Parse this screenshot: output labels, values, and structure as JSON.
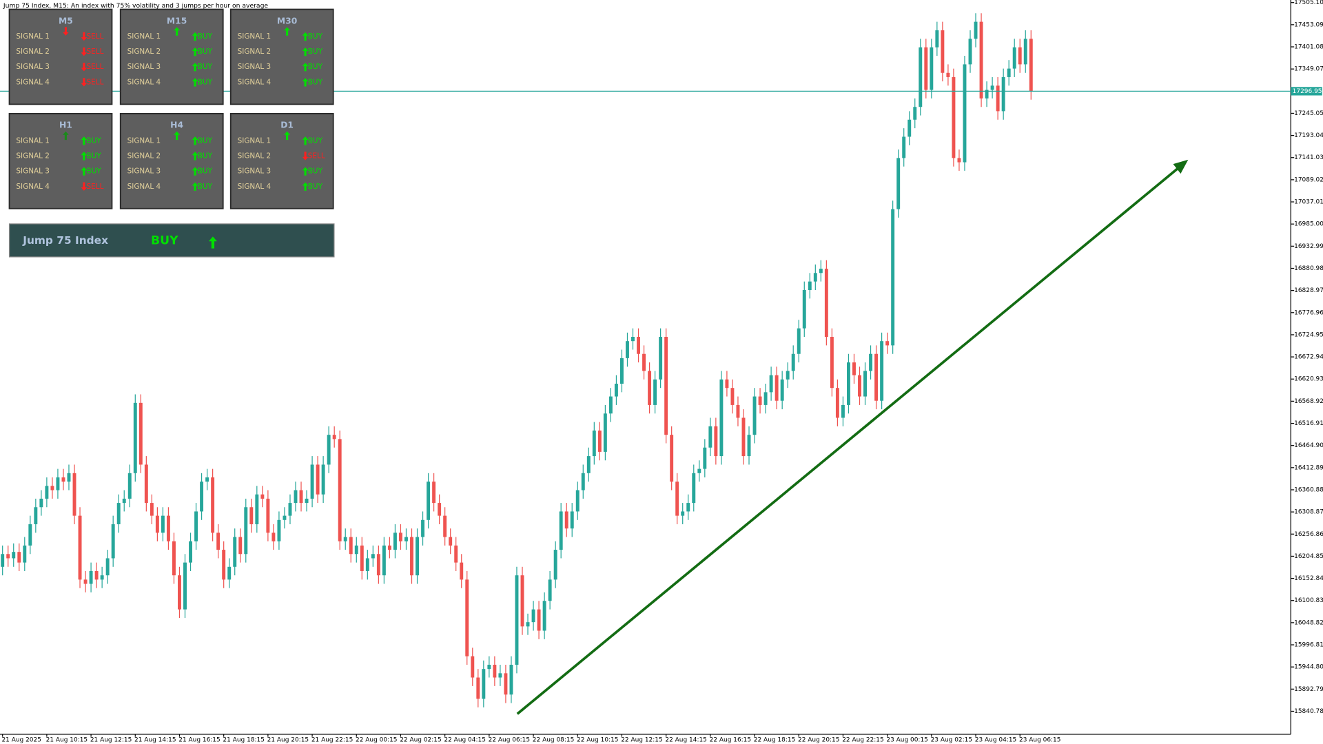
{
  "header": {
    "title": "Jump 75 Index, M15:  An index with 75% volatility and 3 jumps per hour on average"
  },
  "panels": [
    {
      "timeframe": "M5",
      "arrow": "down",
      "arrow_color": "#ff2020",
      "signals": [
        {
          "label": "SIGNAL 1",
          "value": "SELL"
        },
        {
          "label": "SIGNAL 2",
          "value": "SELL"
        },
        {
          "label": "SIGNAL 3",
          "value": "SELL"
        },
        {
          "label": "SIGNAL 4",
          "value": "SELL"
        }
      ]
    },
    {
      "timeframe": "M15",
      "arrow": "up",
      "arrow_color": "#00e000",
      "signals": [
        {
          "label": "SIGNAL 1",
          "value": "BUY"
        },
        {
          "label": "SIGNAL 2",
          "value": "BUY"
        },
        {
          "label": "SIGNAL 3",
          "value": "BUY"
        },
        {
          "label": "SIGNAL 4",
          "value": "BUY"
        }
      ]
    },
    {
      "timeframe": "M30",
      "arrow": "up",
      "arrow_color": "#00e000",
      "signals": [
        {
          "label": "SIGNAL 1",
          "value": "BUY"
        },
        {
          "label": "SIGNAL 2",
          "value": "BUY"
        },
        {
          "label": "SIGNAL 3",
          "value": "BUY"
        },
        {
          "label": "SIGNAL 4",
          "value": "BUY"
        }
      ]
    },
    {
      "timeframe": "H1",
      "arrow": "up",
      "arrow_color": "#1a8a1a",
      "signals": [
        {
          "label": "SIGNAL 1",
          "value": "BUY"
        },
        {
          "label": "SIGNAL 2",
          "value": "BUY"
        },
        {
          "label": "SIGNAL 3",
          "value": "BUY"
        },
        {
          "label": "SIGNAL 4",
          "value": "SELL"
        }
      ]
    },
    {
      "timeframe": "H4",
      "arrow": "up",
      "arrow_color": "#00e000",
      "signals": [
        {
          "label": "SIGNAL 1",
          "value": "BUY"
        },
        {
          "label": "SIGNAL 2",
          "value": "BUY"
        },
        {
          "label": "SIGNAL 3",
          "value": "BUY"
        },
        {
          "label": "SIGNAL 4",
          "value": "BUY"
        }
      ]
    },
    {
      "timeframe": "D1",
      "arrow": "up",
      "arrow_color": "#00e000",
      "signals": [
        {
          "label": "SIGNAL 1",
          "value": "BUY"
        },
        {
          "label": "SIGNAL 2",
          "value": "SELL"
        },
        {
          "label": "SIGNAL 3",
          "value": "BUY"
        },
        {
          "label": "SIGNAL 4",
          "value": "BUY"
        }
      ]
    }
  ],
  "summary": {
    "symbol": "Jump 75 Index",
    "signal": "BUY",
    "arrow": "up",
    "arrow_color": "#00e000"
  },
  "chart_data": {
    "type": "candlestick",
    "up_color": "#26a69a",
    "down_color": "#ef5350",
    "current_price": 17296.95,
    "current_price_color": "#26a69a",
    "categories": [
      "21 Aug 2025",
      null,
      null,
      null,
      null,
      null,
      null,
      null,
      "21 Aug 10:15",
      null,
      null,
      null,
      null,
      null,
      null,
      null,
      "21 Aug 12:15",
      null,
      null,
      null,
      null,
      null,
      null,
      null,
      "21 Aug 14:15",
      null,
      null,
      null,
      null,
      null,
      null,
      null,
      "21 Aug 16:15",
      null,
      null,
      null,
      null,
      null,
      null,
      null,
      "21 Aug 18:15",
      null,
      null,
      null,
      null,
      null,
      null,
      null,
      "21 Aug 20:15",
      null,
      null,
      null,
      null,
      null,
      null,
      null,
      "21 Aug 22:15",
      null,
      null,
      null,
      null,
      null,
      null,
      null,
      "22 Aug 00:15",
      null,
      null,
      null,
      null,
      null,
      null,
      null,
      "22 Aug 02:15",
      null,
      null,
      null,
      null,
      null,
      null,
      null,
      "22 Aug 04:15",
      null,
      null,
      null,
      null,
      null,
      null,
      null,
      "22 Aug 06:15",
      null,
      null,
      null,
      null,
      null,
      null,
      null,
      "22 Aug 08:15",
      null,
      null,
      null,
      null,
      null,
      null,
      null,
      "22 Aug 10:15",
      null,
      null,
      null,
      null,
      null,
      null,
      null,
      "22 Aug 12:15",
      null,
      null,
      null,
      null,
      null,
      null,
      null,
      "22 Aug 14:15",
      null,
      null,
      null,
      null,
      null,
      null,
      null,
      "22 Aug 16:15",
      null,
      null,
      null,
      null,
      null,
      null,
      null,
      "22 Aug 18:15",
      null,
      null,
      null,
      null,
      null,
      null,
      null,
      "22 Aug 20:15",
      null,
      null,
      null,
      null,
      null,
      null,
      null,
      "22 Aug 22:15",
      null,
      null,
      null,
      null,
      null,
      null,
      null,
      "23 Aug 00:15",
      null,
      null,
      null,
      null,
      null,
      null,
      null,
      "23 Aug 02:15",
      null,
      null,
      null,
      null,
      null,
      null,
      null,
      "23 Aug 04:15",
      null,
      null,
      null,
      null,
      null,
      null,
      null,
      "23 Aug 06:15",
      null,
      null
    ],
    "open": [
      16180,
      16210,
      16200,
      16215,
      16190,
      16230,
      16280,
      16320,
      16340,
      16370,
      16360,
      16390,
      16380,
      16400,
      16300,
      16150,
      16140,
      16170,
      16150,
      16160,
      16200,
      16280,
      16330,
      16340,
      16400,
      16565,
      16420,
      16330,
      16300,
      16260,
      16300,
      16240,
      16160,
      16080,
      16190,
      16240,
      16310,
      16380,
      16390,
      16260,
      16220,
      16150,
      16180,
      16250,
      16210,
      16320,
      16280,
      16350,
      16340,
      16260,
      16240,
      16290,
      16300,
      16330,
      16360,
      16330,
      16340,
      16420,
      16350,
      16420,
      16490,
      16480,
      16240,
      16250,
      16210,
      16230,
      16170,
      16200,
      16210,
      16160,
      16230,
      16220,
      16260,
      16240,
      16250,
      16160,
      16250,
      16290,
      16380,
      16330,
      16300,
      16250,
      16230,
      16190,
      16150,
      15970,
      15920,
      15870,
      15940,
      15950,
      15920,
      15930,
      15880,
      15950,
      16160,
      16040,
      16050,
      16080,
      16030,
      16100,
      16150,
      16220,
      16310,
      16270,
      16310,
      16360,
      16400,
      16440,
      16500,
      16450,
      16540,
      16580,
      16610,
      16670,
      16710,
      16720,
      16680,
      16640,
      16560,
      16620,
      16720,
      16490,
      16380,
      16300,
      16310,
      16330,
      16400,
      16410,
      16460,
      16510,
      16440,
      16620,
      16600,
      16560,
      16530,
      16440,
      16490,
      16580,
      16560,
      16590,
      16630,
      16570,
      16620,
      16640,
      16680,
      16740,
      16830,
      16850,
      16870,
      16880,
      16720,
      16600,
      16530,
      16560,
      16660,
      16630,
      16580,
      16640,
      16680,
      16570,
      16710,
      16700,
      17020,
      17140,
      17190,
      17230,
      17260,
      17400,
      17300,
      17400,
      17440,
      17340,
      17330,
      17140,
      17130,
      17360,
      17420,
      17460,
      17280,
      17300,
      17310,
      17250,
      17330,
      17350,
      17400,
      17360,
      17420
    ],
    "high": [
      16230,
      16230,
      16235,
      16235,
      16250,
      16300,
      16340,
      16360,
      16390,
      16390,
      16410,
      16410,
      16420,
      16420,
      16320,
      16170,
      16190,
      16190,
      16180,
      16220,
      16300,
      16350,
      16360,
      16420,
      16585,
      16585,
      16440,
      16350,
      16320,
      16320,
      16320,
      16260,
      16180,
      16210,
      16260,
      16330,
      16400,
      16410,
      16410,
      16280,
      16240,
      16200,
      16270,
      16270,
      16340,
      16340,
      16370,
      16370,
      16360,
      16280,
      16310,
      16320,
      16350,
      16380,
      16380,
      16360,
      16440,
      16440,
      16440,
      16510,
      16510,
      16500,
      16270,
      16270,
      16250,
      16250,
      16220,
      16230,
      16230,
      16250,
      16250,
      16280,
      16280,
      16270,
      16270,
      16270,
      16310,
      16400,
      16400,
      16350,
      16320,
      16270,
      16250,
      16210,
      16170,
      15990,
      15940,
      15960,
      15970,
      15970,
      15950,
      15950,
      15970,
      16180,
      16180,
      16070,
      16100,
      16100,
      16120,
      16170,
      16240,
      16330,
      16330,
      16330,
      16380,
      16420,
      16460,
      16520,
      16520,
      16560,
      16600,
      16630,
      16690,
      16730,
      16740,
      16740,
      16700,
      16660,
      16640,
      16740,
      16740,
      16510,
      16400,
      16330,
      16350,
      16420,
      16430,
      16480,
      16530,
      16530,
      16640,
      16640,
      16620,
      16580,
      16550,
      16510,
      16600,
      16600,
      16610,
      16650,
      16650,
      16640,
      16660,
      16700,
      16760,
      16850,
      16870,
      16890,
      16900,
      16900,
      16740,
      16620,
      16580,
      16680,
      16680,
      16650,
      16660,
      16700,
      16700,
      16730,
      16730,
      17040,
      17160,
      17210,
      17250,
      17280,
      17420,
      17420,
      17420,
      17460,
      17460,
      17360,
      17350,
      17160,
      17380,
      17440,
      17480,
      17480,
      17320,
      17330,
      17330,
      17350,
      17370,
      17420,
      17420,
      17440,
      17440
    ],
    "low": [
      16160,
      16180,
      16180,
      16170,
      16170,
      16210,
      16260,
      16300,
      16320,
      16340,
      16340,
      16360,
      16360,
      16280,
      16130,
      16120,
      16120,
      16130,
      16130,
      16140,
      16180,
      16260,
      16310,
      16320,
      16380,
      16400,
      16310,
      16280,
      16240,
      16240,
      16220,
      16140,
      16060,
      16060,
      16170,
      16220,
      16290,
      16360,
      16240,
      16200,
      16130,
      16130,
      16160,
      16190,
      16190,
      16260,
      16260,
      16320,
      16240,
      16220,
      16220,
      16270,
      16280,
      16310,
      16310,
      16310,
      16320,
      16330,
      16330,
      16400,
      16460,
      16220,
      16220,
      16190,
      16190,
      16150,
      16150,
      16180,
      16140,
      16140,
      16200,
      16200,
      16220,
      16220,
      16140,
      16140,
      16230,
      16270,
      16310,
      16280,
      16230,
      16210,
      16170,
      16130,
      15950,
      15900,
      15850,
      15850,
      15920,
      15900,
      15900,
      15860,
      15860,
      15930,
      16020,
      16020,
      16030,
      16010,
      16010,
      16080,
      16130,
      16200,
      16250,
      16250,
      16290,
      16340,
      16380,
      16420,
      16430,
      16430,
      16520,
      16560,
      16590,
      16650,
      16690,
      16660,
      16620,
      16540,
      16540,
      16600,
      16470,
      16360,
      16280,
      16280,
      16290,
      16310,
      16380,
      16390,
      16440,
      16420,
      16420,
      16580,
      16540,
      16510,
      16420,
      16420,
      16470,
      16540,
      16540,
      16570,
      16550,
      16550,
      16600,
      16620,
      16660,
      16720,
      16810,
      16830,
      16850,
      16700,
      16580,
      16510,
      16510,
      16540,
      16610,
      16560,
      16560,
      16620,
      16550,
      16550,
      16680,
      16680,
      17000,
      17120,
      17170,
      17210,
      17240,
      17280,
      17280,
      17380,
      17320,
      17310,
      17120,
      17110,
      17110,
      17340,
      17400,
      17260,
      17260,
      17280,
      17230,
      17230,
      17310,
      17330,
      17340,
      17340,
      17277
    ],
    "close": [
      16210,
      16200,
      16215,
      16190,
      16230,
      16280,
      16320,
      16340,
      16370,
      16360,
      16390,
      16380,
      16400,
      16300,
      16150,
      16140,
      16170,
      16150,
      16160,
      16200,
      16280,
      16330,
      16340,
      16400,
      16565,
      16420,
      16330,
      16300,
      16260,
      16300,
      16240,
      16160,
      16080,
      16190,
      16240,
      16310,
      16380,
      16390,
      16260,
      16220,
      16150,
      16180,
      16250,
      16210,
      16320,
      16280,
      16350,
      16340,
      16260,
      16240,
      16290,
      16300,
      16330,
      16360,
      16330,
      16340,
      16420,
      16350,
      16420,
      16490,
      16480,
      16240,
      16250,
      16210,
      16230,
      16170,
      16200,
      16210,
      16160,
      16230,
      16220,
      16260,
      16240,
      16250,
      16160,
      16250,
      16290,
      16380,
      16330,
      16300,
      16250,
      16230,
      16190,
      16150,
      15970,
      15920,
      15870,
      15940,
      15950,
      15920,
      15930,
      15880,
      15950,
      16160,
      16040,
      16050,
      16080,
      16030,
      16100,
      16150,
      16220,
      16310,
      16270,
      16310,
      16360,
      16400,
      16440,
      16500,
      16450,
      16540,
      16580,
      16610,
      16670,
      16710,
      16720,
      16680,
      16640,
      16560,
      16620,
      16720,
      16490,
      16380,
      16300,
      16310,
      16330,
      16400,
      16410,
      16460,
      16510,
      16440,
      16620,
      16600,
      16560,
      16530,
      16440,
      16490,
      16580,
      16560,
      16590,
      16630,
      16570,
      16620,
      16640,
      16680,
      16740,
      16830,
      16850,
      16870,
      16880,
      16720,
      16600,
      16530,
      16560,
      16660,
      16630,
      16580,
      16640,
      16680,
      16570,
      16710,
      16700,
      17020,
      17140,
      17190,
      17230,
      17260,
      17400,
      17300,
      17400,
      17440,
      17340,
      17330,
      17140,
      17130,
      17360,
      17420,
      17460,
      17280,
      17300,
      17310,
      17250,
      17330,
      17350,
      17400,
      17360,
      17420,
      17296.95
    ],
    "ylim": [
      15786.8,
      17511.1
    ],
    "yticks": [
      {
        "value": 17505.1,
        "label": "17505.10"
      },
      17453.09,
      17401.08,
      17349.07,
      17245.05,
      17193.04,
      17141.03,
      17089.02,
      17037.01,
      {
        "value": 16985,
        "label": "16985.00"
      },
      16932.99,
      16880.98,
      16828.97,
      16776.96,
      16724.95,
      16672.94,
      16620.93,
      16568.92,
      16516.91,
      {
        "value": 16464.9,
        "label": "16464.90"
      },
      16412.89,
      16360.88,
      16308.87,
      16256.86,
      16204.85,
      16152.84,
      16100.83,
      16048.82,
      15996.81,
      {
        "value": 15944.8,
        "label": "15944.80"
      },
      15892.79,
      15840.78
    ]
  }
}
